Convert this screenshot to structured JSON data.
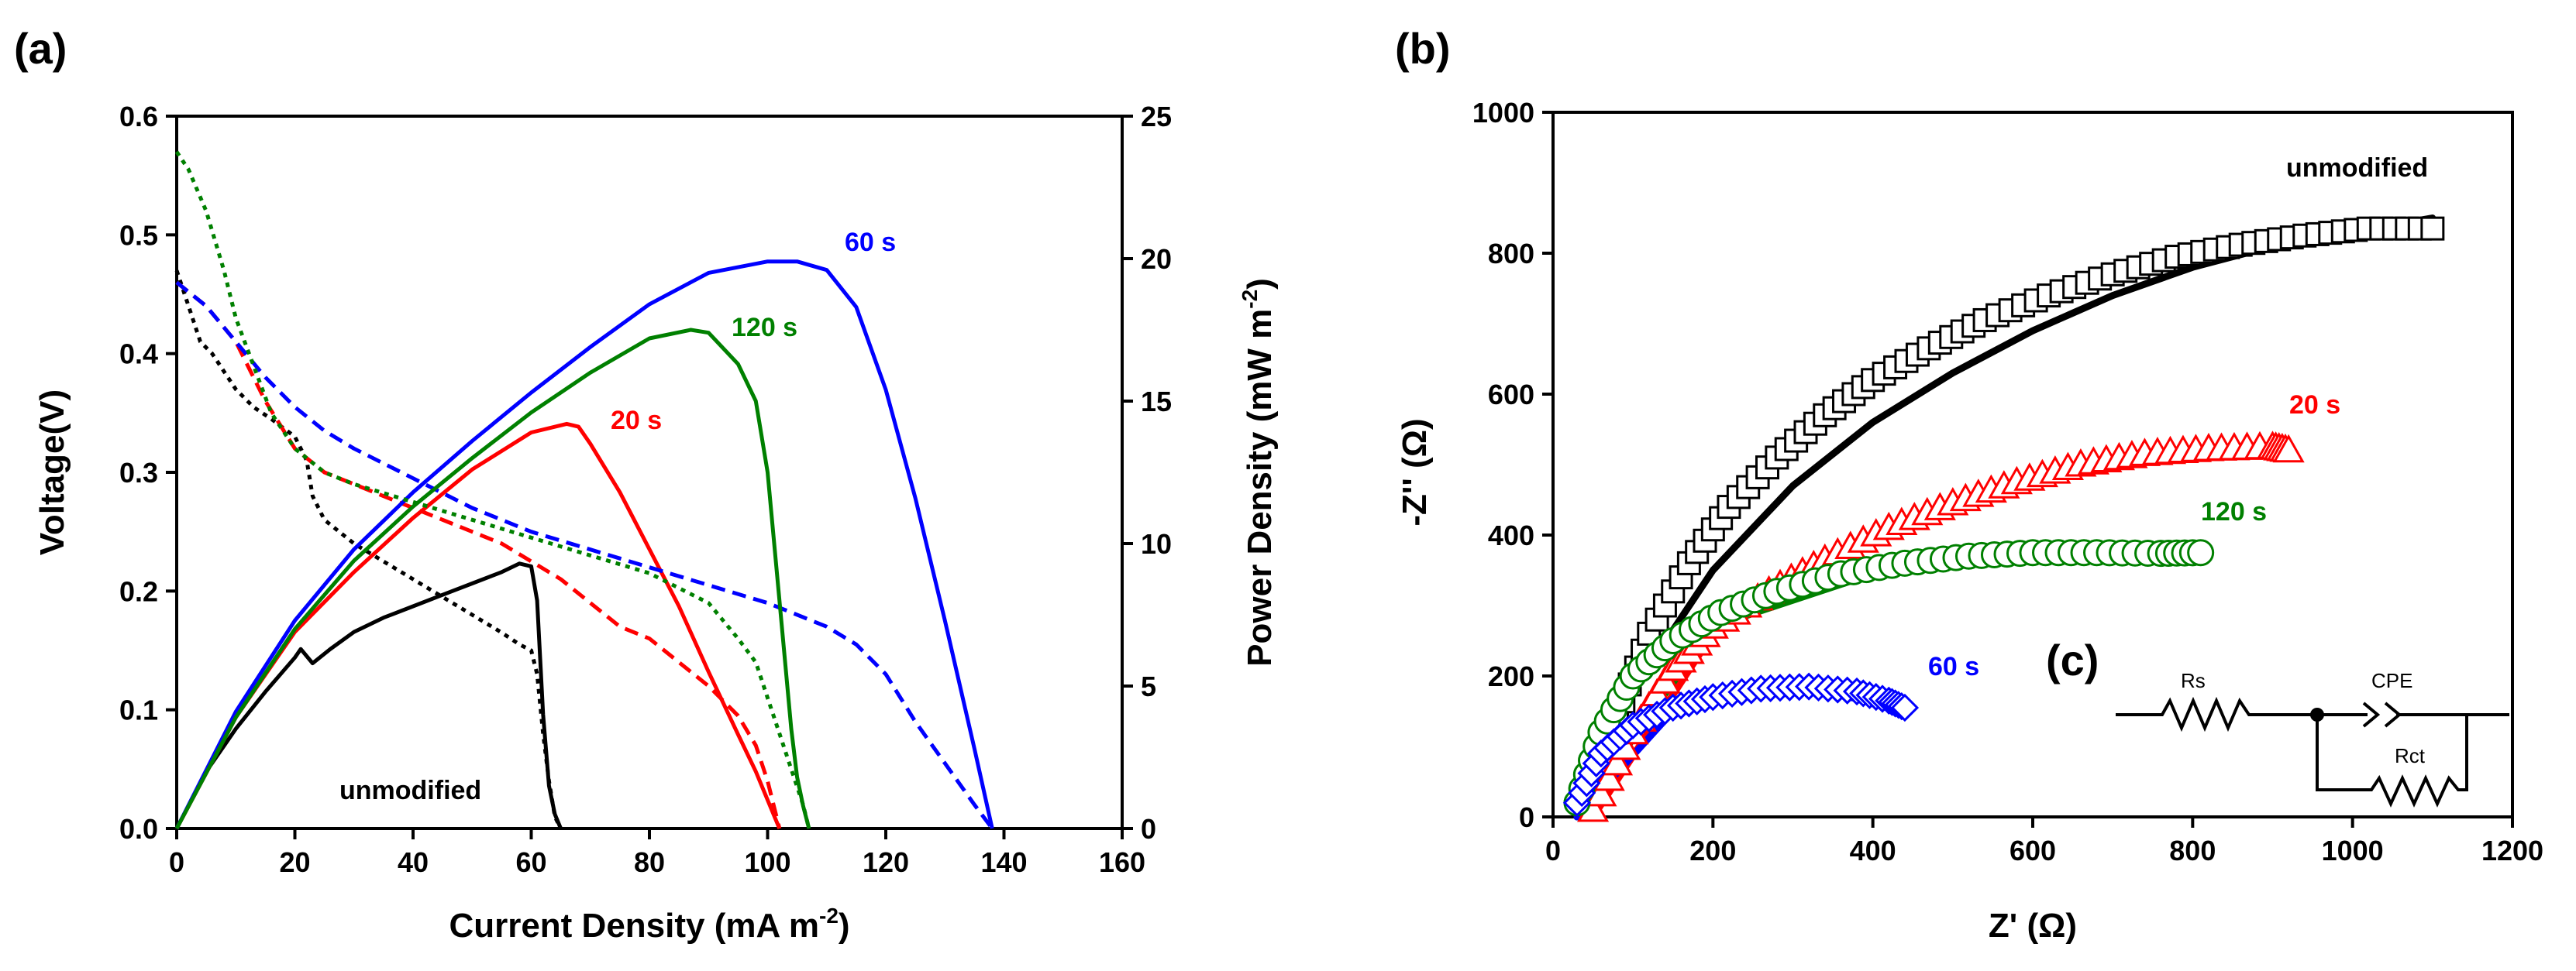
{
  "figure": {
    "label_a": "(a)",
    "label_b": "(b)",
    "label_c": "(c)"
  },
  "colors": {
    "unmodified": "#000000",
    "20 s": "#ff0000",
    "60 s": "#0000ff",
    "120 s": "#008000"
  },
  "chart_data": [
    {
      "id": "a",
      "type": "line",
      "title": "",
      "xlabel": "Current Density (mA m",
      "xlabel_sup": "-2",
      "xlabel_end": ")",
      "ylabel": "Voltage(V)",
      "y2label": "Power Density (mW m",
      "y2label_sup": "-2",
      "y2label_end": ")",
      "xlim": [
        0,
        160
      ],
      "ylim": [
        0,
        0.6
      ],
      "y2lim": [
        0,
        25
      ],
      "xticks": [
        "0",
        "20",
        "40",
        "60",
        "80",
        "100",
        "120",
        "140",
        "160"
      ],
      "yticks": [
        "0.0",
        "0.1",
        "0.2",
        "0.3",
        "0.4",
        "0.5",
        "0.6"
      ],
      "y2ticks": [
        "0",
        "5",
        "10",
        "15",
        "20",
        "25"
      ],
      "annotations": {
        "unmodified": "unmodified",
        "s20": "20 s",
        "s60": "60 s",
        "s120": "120 s"
      },
      "series": [
        {
          "name": "unmodified",
          "kind": "power",
          "axis": "y2",
          "x": [
            0,
            5,
            10,
            15,
            20,
            21,
            23,
            26,
            30,
            35,
            40,
            45,
            50,
            55,
            58,
            60,
            61,
            62,
            63,
            64,
            65
          ],
          "y": [
            0,
            2,
            3.5,
            4.8,
            6.0,
            6.3,
            5.8,
            6.3,
            6.9,
            7.4,
            7.8,
            8.2,
            8.6,
            9.0,
            9.3,
            9.2,
            8.0,
            4.0,
            1.5,
            0.5,
            0
          ]
        },
        {
          "name": "unmodified",
          "kind": "voltage",
          "axis": "y",
          "x": [
            0,
            2,
            4,
            6,
            8,
            10,
            13,
            16,
            20,
            22,
            23,
            25,
            30,
            35,
            40,
            45,
            50,
            55,
            58,
            60,
            61,
            62,
            63,
            64,
            65
          ],
          "y": [
            0.47,
            0.44,
            0.41,
            0.4,
            0.385,
            0.37,
            0.355,
            0.345,
            0.33,
            0.31,
            0.28,
            0.26,
            0.24,
            0.225,
            0.21,
            0.195,
            0.18,
            0.165,
            0.155,
            0.15,
            0.13,
            0.08,
            0.04,
            0.01,
            0
          ]
        },
        {
          "name": "20 s",
          "kind": "power",
          "axis": "y2",
          "x": [
            0,
            10,
            20,
            30,
            40,
            50,
            60,
            66,
            68,
            70,
            75,
            80,
            85,
            90,
            95,
            98,
            100,
            101,
            102
          ],
          "y": [
            0,
            3.9,
            6.9,
            9.0,
            10.9,
            12.6,
            13.9,
            14.2,
            14.1,
            13.5,
            11.8,
            9.8,
            7.8,
            5.5,
            3.3,
            2.0,
            1.0,
            0.5,
            0
          ]
        },
        {
          "name": "20 s",
          "kind": "voltage",
          "axis": "y",
          "x": [
            0,
            5,
            10,
            15,
            20,
            25,
            30,
            35,
            40,
            45,
            50,
            55,
            60,
            65,
            70,
            75,
            80,
            85,
            90,
            95,
            98,
            100,
            102
          ],
          "y": [
            0.46,
            0.44,
            0.41,
            0.36,
            0.32,
            0.3,
            0.29,
            0.28,
            0.27,
            0.26,
            0.25,
            0.24,
            0.225,
            0.21,
            0.19,
            0.17,
            0.16,
            0.14,
            0.12,
            0.095,
            0.07,
            0.04,
            0
          ]
        },
        {
          "name": "60 s",
          "kind": "power",
          "axis": "y2",
          "x": [
            0,
            10,
            20,
            30,
            40,
            50,
            60,
            70,
            80,
            90,
            100,
            105,
            110,
            115,
            120,
            125,
            130,
            135,
            138
          ],
          "y": [
            0,
            4.1,
            7.3,
            9.8,
            11.8,
            13.6,
            15.3,
            16.9,
            18.4,
            19.5,
            19.9,
            19.9,
            19.6,
            18.3,
            15.4,
            11.6,
            7.3,
            2.8,
            0
          ]
        },
        {
          "name": "60 s",
          "kind": "voltage",
          "axis": "y",
          "x": [
            0,
            5,
            10,
            15,
            20,
            25,
            30,
            40,
            50,
            60,
            70,
            80,
            90,
            100,
            110,
            115,
            120,
            125,
            130,
            135,
            138
          ],
          "y": [
            0.46,
            0.44,
            0.41,
            0.38,
            0.355,
            0.335,
            0.32,
            0.295,
            0.27,
            0.25,
            0.235,
            0.22,
            0.205,
            0.19,
            0.17,
            0.155,
            0.13,
            0.09,
            0.055,
            0.02,
            0
          ]
        },
        {
          "name": "120 s",
          "kind": "power",
          "axis": "y2",
          "x": [
            0,
            10,
            20,
            30,
            40,
            50,
            60,
            70,
            80,
            87,
            90,
            95,
            98,
            100,
            102,
            104,
            105,
            106,
            107
          ],
          "y": [
            0,
            3.9,
            7.0,
            9.4,
            11.3,
            13.0,
            14.6,
            16.0,
            17.2,
            17.5,
            17.4,
            16.3,
            15.0,
            12.5,
            8.0,
            3.5,
            1.8,
            0.8,
            0
          ]
        },
        {
          "name": "120 s",
          "kind": "voltage",
          "axis": "y",
          "x": [
            0,
            2,
            5,
            8,
            10,
            13,
            16,
            20,
            25,
            30,
            40,
            50,
            60,
            70,
            80,
            90,
            95,
            98,
            100,
            102,
            104,
            106,
            107
          ],
          "y": [
            0.57,
            0.555,
            0.52,
            0.47,
            0.43,
            0.39,
            0.35,
            0.32,
            0.3,
            0.29,
            0.275,
            0.26,
            0.245,
            0.23,
            0.215,
            0.19,
            0.16,
            0.14,
            0.11,
            0.08,
            0.05,
            0.02,
            0
          ]
        }
      ]
    },
    {
      "id": "b",
      "type": "scatter",
      "title": "",
      "xlabel": "Z' (Ω)",
      "ylabel": "-Z'' (Ω)",
      "xlim": [
        0,
        1200
      ],
      "ylim": [
        0,
        1000
      ],
      "xticks": [
        "0",
        "200",
        "400",
        "600",
        "800",
        "1000",
        "1200"
      ],
      "yticks": [
        "0",
        "200",
        "400",
        "600",
        "800",
        "1000"
      ],
      "annotations": {
        "unmodified": "unmodified",
        "s20": "20 s",
        "s60": "60 s",
        "s120": "120 s"
      },
      "series": [
        {
          "name": "unmodified",
          "marker": "square",
          "x": [
            40,
            80,
            120,
            170,
            220,
            280,
            340,
            400,
            470,
            540,
            620,
            700,
            780,
            860,
            940,
            1020,
            1100
          ],
          "y": [
            20,
            140,
            260,
            360,
            440,
            510,
            570,
            620,
            665,
            705,
            740,
            770,
            795,
            812,
            825,
            835,
            835
          ]
        },
        {
          "name": "unmodified fit",
          "marker": "line",
          "x": [
            30,
            100,
            200,
            300,
            400,
            500,
            600,
            700,
            800,
            900,
            1000,
            1100
          ],
          "y": [
            0,
            180,
            350,
            470,
            560,
            630,
            690,
            740,
            780,
            810,
            830,
            850
          ]
        },
        {
          "name": "20 s",
          "marker": "triangle",
          "x": [
            50,
            100,
            150,
            200,
            270,
            340,
            420,
            500,
            580,
            660,
            740,
            820,
            900,
            920
          ],
          "y": [
            10,
            120,
            210,
            270,
            320,
            365,
            410,
            445,
            475,
            500,
            515,
            522,
            525,
            520
          ]
        },
        {
          "name": "20 s fit",
          "marker": "line",
          "x": [
            50,
            200,
            400,
            600,
            800,
            920
          ],
          "y": [
            0,
            260,
            400,
            480,
            515,
            520
          ]
        },
        {
          "name": "120 s",
          "marker": "circle",
          "x": [
            30,
            60,
            100,
            150,
            210,
            280,
            360,
            440,
            520,
            600,
            680,
            760,
            810
          ],
          "y": [
            20,
            120,
            200,
            250,
            290,
            320,
            345,
            360,
            370,
            375,
            375,
            374,
            375
          ]
        },
        {
          "name": "120 s fit",
          "marker": "line",
          "x": [
            30,
            200,
            400,
            600,
            810
          ],
          "y": [
            0,
            270,
            345,
            370,
            372
          ]
        },
        {
          "name": "60 s",
          "marker": "diamond",
          "x": [
            30,
            60,
            100,
            150,
            200,
            260,
            320,
            380,
            420,
            440
          ],
          "y": [
            20,
            90,
            130,
            155,
            170,
            182,
            185,
            178,
            165,
            155
          ]
        },
        {
          "name": "60 s fit",
          "marker": "line",
          "x": [
            30,
            150,
            300,
            440
          ],
          "y": [
            0,
            150,
            185,
            155
          ]
        }
      ]
    }
  ],
  "circuit": {
    "rs": "Rs",
    "cpe": "CPE",
    "rct": "Rct"
  }
}
